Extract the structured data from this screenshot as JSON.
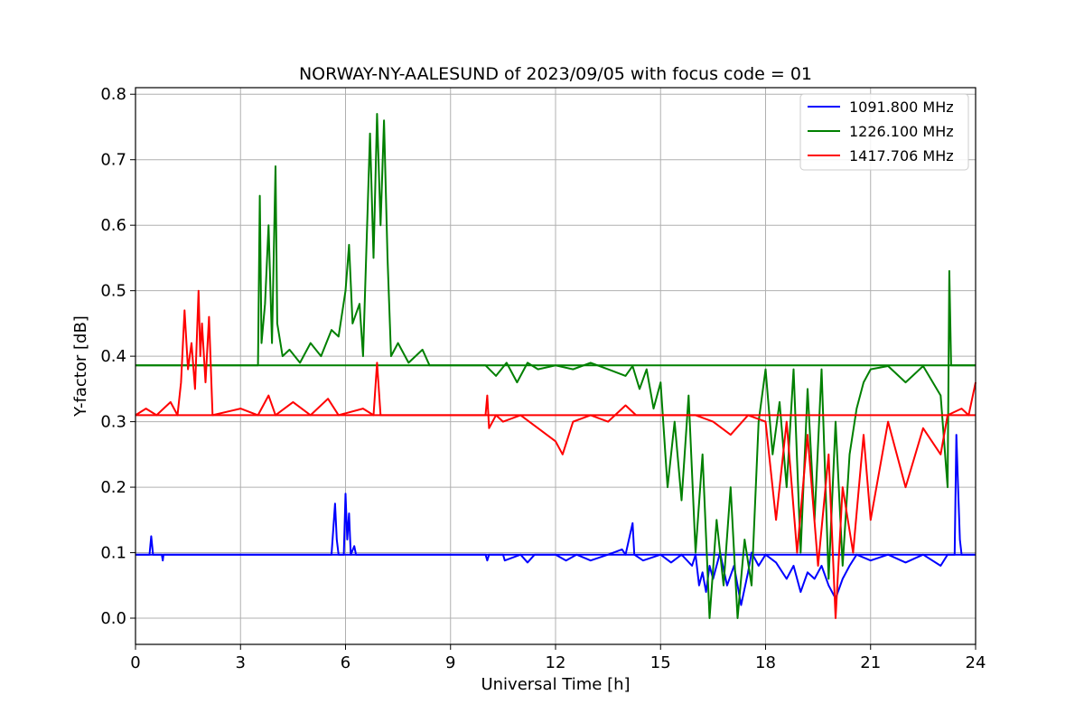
{
  "chart_data": {
    "type": "line",
    "title": "NORWAY-NY-AALESUND of 2023/09/05 with focus code = 01",
    "xlabel": "Universal Time [h]",
    "ylabel": "Y-factor [dB]",
    "xlim": [
      0,
      24
    ],
    "ylim": [
      -0.04,
      0.81
    ],
    "xticks": [
      0,
      3,
      6,
      9,
      12,
      15,
      18,
      21,
      24
    ],
    "xtick_labels": [
      "0",
      "3",
      "6",
      "9",
      "12",
      "15",
      "18",
      "21",
      "24"
    ],
    "yticks": [
      0.0,
      0.1,
      0.2,
      0.3,
      0.4,
      0.5,
      0.6,
      0.7,
      0.8
    ],
    "ytick_labels": [
      "0.0",
      "0.1",
      "0.2",
      "0.3",
      "0.4",
      "0.5",
      "0.6",
      "0.7",
      "0.8"
    ],
    "grid": true,
    "legend_position": "top-right",
    "series": [
      {
        "name": "1091.800 MHz",
        "color": "#0000ff",
        "baseline": 0.097,
        "points": [
          [
            0,
            0.097
          ],
          [
            0.4,
            0.097
          ],
          [
            0.45,
            0.125
          ],
          [
            0.5,
            0.097
          ],
          [
            0.75,
            0.097
          ],
          [
            0.78,
            0.088
          ],
          [
            0.8,
            0.097
          ],
          [
            5.6,
            0.097
          ],
          [
            5.7,
            0.175
          ],
          [
            5.75,
            0.12
          ],
          [
            5.8,
            0.097
          ],
          [
            5.95,
            0.097
          ],
          [
            6.0,
            0.19
          ],
          [
            6.05,
            0.12
          ],
          [
            6.1,
            0.16
          ],
          [
            6.15,
            0.097
          ],
          [
            6.25,
            0.11
          ],
          [
            6.3,
            0.097
          ],
          [
            10.0,
            0.097
          ],
          [
            10.05,
            0.088
          ],
          [
            10.1,
            0.097
          ],
          [
            10.5,
            0.097
          ],
          [
            10.55,
            0.088
          ],
          [
            11.0,
            0.097
          ],
          [
            11.2,
            0.085
          ],
          [
            11.4,
            0.097
          ],
          [
            12.0,
            0.097
          ],
          [
            12.3,
            0.088
          ],
          [
            12.6,
            0.097
          ],
          [
            13.0,
            0.088
          ],
          [
            13.5,
            0.097
          ],
          [
            13.9,
            0.105
          ],
          [
            14.0,
            0.097
          ],
          [
            14.2,
            0.145
          ],
          [
            14.25,
            0.097
          ],
          [
            14.5,
            0.088
          ],
          [
            15.0,
            0.097
          ],
          [
            15.3,
            0.085
          ],
          [
            15.6,
            0.097
          ],
          [
            15.9,
            0.08
          ],
          [
            16.0,
            0.097
          ],
          [
            16.1,
            0.05
          ],
          [
            16.2,
            0.07
          ],
          [
            16.3,
            0.04
          ],
          [
            16.4,
            0.08
          ],
          [
            16.5,
            0.06
          ],
          [
            16.7,
            0.1
          ],
          [
            16.9,
            0.05
          ],
          [
            17.1,
            0.08
          ],
          [
            17.3,
            0.02
          ],
          [
            17.5,
            0.07
          ],
          [
            17.6,
            0.1
          ],
          [
            17.8,
            0.08
          ],
          [
            18.0,
            0.097
          ],
          [
            18.3,
            0.085
          ],
          [
            18.6,
            0.06
          ],
          [
            18.8,
            0.08
          ],
          [
            19.0,
            0.04
          ],
          [
            19.2,
            0.07
          ],
          [
            19.4,
            0.06
          ],
          [
            19.6,
            0.08
          ],
          [
            19.8,
            0.05
          ],
          [
            20.0,
            0.03
          ],
          [
            20.2,
            0.06
          ],
          [
            20.4,
            0.08
          ],
          [
            20.6,
            0.097
          ],
          [
            21.0,
            0.088
          ],
          [
            21.5,
            0.097
          ],
          [
            22.0,
            0.085
          ],
          [
            22.5,
            0.097
          ],
          [
            23.0,
            0.08
          ],
          [
            23.2,
            0.097
          ],
          [
            23.4,
            0.097
          ],
          [
            23.45,
            0.28
          ],
          [
            23.5,
            0.2
          ],
          [
            23.55,
            0.12
          ],
          [
            23.6,
            0.097
          ],
          [
            24,
            0.097
          ]
        ]
      },
      {
        "name": "1226.100 MHz",
        "color": "#008000",
        "baseline": 0.386,
        "points": [
          [
            0,
            0.386
          ],
          [
            3.5,
            0.386
          ],
          [
            3.55,
            0.645
          ],
          [
            3.6,
            0.42
          ],
          [
            3.7,
            0.48
          ],
          [
            3.8,
            0.6
          ],
          [
            3.9,
            0.42
          ],
          [
            4.0,
            0.69
          ],
          [
            4.05,
            0.45
          ],
          [
            4.2,
            0.4
          ],
          [
            4.4,
            0.41
          ],
          [
            4.7,
            0.39
          ],
          [
            5.0,
            0.42
          ],
          [
            5.3,
            0.4
          ],
          [
            5.6,
            0.44
          ],
          [
            5.8,
            0.43
          ],
          [
            6.0,
            0.5
          ],
          [
            6.1,
            0.57
          ],
          [
            6.2,
            0.45
          ],
          [
            6.4,
            0.48
          ],
          [
            6.5,
            0.4
          ],
          [
            6.7,
            0.74
          ],
          [
            6.8,
            0.55
          ],
          [
            6.9,
            0.77
          ],
          [
            7.0,
            0.6
          ],
          [
            7.1,
            0.76
          ],
          [
            7.2,
            0.55
          ],
          [
            7.3,
            0.4
          ],
          [
            7.5,
            0.42
          ],
          [
            7.8,
            0.39
          ],
          [
            8.2,
            0.41
          ],
          [
            8.4,
            0.386
          ],
          [
            10.0,
            0.386
          ],
          [
            10.3,
            0.37
          ],
          [
            10.6,
            0.39
          ],
          [
            10.9,
            0.36
          ],
          [
            11.2,
            0.39
          ],
          [
            11.5,
            0.38
          ],
          [
            12.0,
            0.386
          ],
          [
            12.5,
            0.38
          ],
          [
            13.0,
            0.39
          ],
          [
            13.5,
            0.38
          ],
          [
            14.0,
            0.37
          ],
          [
            14.2,
            0.385
          ],
          [
            14.4,
            0.35
          ],
          [
            14.6,
            0.38
          ],
          [
            14.8,
            0.32
          ],
          [
            15.0,
            0.36
          ],
          [
            15.2,
            0.2
          ],
          [
            15.4,
            0.3
          ],
          [
            15.6,
            0.18
          ],
          [
            15.8,
            0.34
          ],
          [
            16.0,
            0.1
          ],
          [
            16.2,
            0.25
          ],
          [
            16.4,
            0.0
          ],
          [
            16.6,
            0.15
          ],
          [
            16.8,
            0.05
          ],
          [
            17.0,
            0.2
          ],
          [
            17.2,
            0.0
          ],
          [
            17.4,
            0.12
          ],
          [
            17.6,
            0.05
          ],
          [
            17.8,
            0.3
          ],
          [
            18.0,
            0.38
          ],
          [
            18.2,
            0.25
          ],
          [
            18.4,
            0.33
          ],
          [
            18.6,
            0.2
          ],
          [
            18.8,
            0.38
          ],
          [
            19.0,
            0.1
          ],
          [
            19.2,
            0.35
          ],
          [
            19.4,
            0.15
          ],
          [
            19.6,
            0.38
          ],
          [
            19.8,
            0.06
          ],
          [
            20.0,
            0.3
          ],
          [
            20.2,
            0.08
          ],
          [
            20.4,
            0.25
          ],
          [
            20.6,
            0.32
          ],
          [
            20.8,
            0.36
          ],
          [
            21.0,
            0.38
          ],
          [
            21.5,
            0.385
          ],
          [
            22.0,
            0.36
          ],
          [
            22.5,
            0.385
          ],
          [
            23.0,
            0.34
          ],
          [
            23.2,
            0.2
          ],
          [
            23.25,
            0.53
          ],
          [
            23.3,
            0.386
          ],
          [
            24,
            0.386
          ]
        ]
      },
      {
        "name": "1417.706 MHz",
        "color": "#ff0000",
        "baseline": 0.31,
        "points": [
          [
            0,
            0.31
          ],
          [
            0.3,
            0.32
          ],
          [
            0.6,
            0.31
          ],
          [
            1.0,
            0.33
          ],
          [
            1.2,
            0.31
          ],
          [
            1.3,
            0.36
          ],
          [
            1.4,
            0.47
          ],
          [
            1.5,
            0.38
          ],
          [
            1.6,
            0.42
          ],
          [
            1.7,
            0.35
          ],
          [
            1.8,
            0.5
          ],
          [
            1.85,
            0.4
          ],
          [
            1.9,
            0.45
          ],
          [
            2.0,
            0.36
          ],
          [
            2.1,
            0.46
          ],
          [
            2.2,
            0.31
          ],
          [
            3.0,
            0.32
          ],
          [
            3.5,
            0.31
          ],
          [
            3.8,
            0.34
          ],
          [
            4.0,
            0.31
          ],
          [
            4.5,
            0.33
          ],
          [
            5.0,
            0.31
          ],
          [
            5.5,
            0.335
          ],
          [
            5.8,
            0.31
          ],
          [
            6.5,
            0.32
          ],
          [
            6.8,
            0.31
          ],
          [
            6.9,
            0.39
          ],
          [
            7.0,
            0.31
          ],
          [
            8.5,
            0.31
          ],
          [
            10.0,
            0.31
          ],
          [
            10.05,
            0.34
          ],
          [
            10.1,
            0.29
          ],
          [
            10.3,
            0.31
          ],
          [
            10.5,
            0.3
          ],
          [
            11.0,
            0.31
          ],
          [
            11.5,
            0.29
          ],
          [
            12.0,
            0.27
          ],
          [
            12.2,
            0.25
          ],
          [
            12.5,
            0.3
          ],
          [
            13.0,
            0.31
          ],
          [
            13.5,
            0.3
          ],
          [
            14.0,
            0.325
          ],
          [
            14.3,
            0.31
          ],
          [
            16.0,
            0.31
          ],
          [
            16.5,
            0.3
          ],
          [
            17.0,
            0.28
          ],
          [
            17.5,
            0.31
          ],
          [
            18.0,
            0.3
          ],
          [
            18.3,
            0.15
          ],
          [
            18.6,
            0.3
          ],
          [
            18.9,
            0.1
          ],
          [
            19.2,
            0.28
          ],
          [
            19.5,
            0.08
          ],
          [
            19.8,
            0.25
          ],
          [
            20.0,
            0.0
          ],
          [
            20.2,
            0.2
          ],
          [
            20.5,
            0.1
          ],
          [
            20.8,
            0.28
          ],
          [
            21.0,
            0.15
          ],
          [
            21.5,
            0.3
          ],
          [
            22.0,
            0.2
          ],
          [
            22.5,
            0.29
          ],
          [
            23.0,
            0.25
          ],
          [
            23.2,
            0.31
          ],
          [
            23.6,
            0.32
          ],
          [
            23.8,
            0.31
          ],
          [
            24,
            0.36
          ]
        ]
      }
    ]
  }
}
